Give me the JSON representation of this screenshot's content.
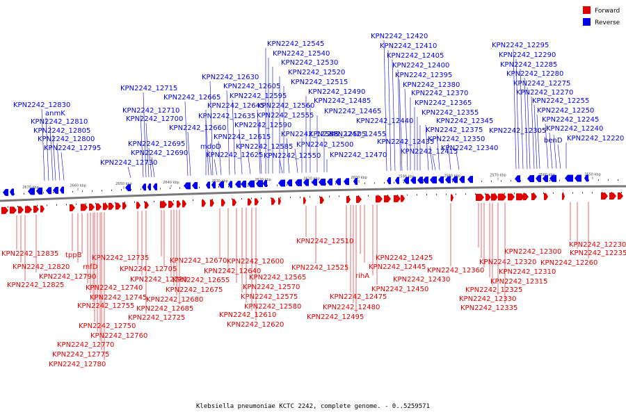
{
  "caption": "Klebsiella pneumoniae KCTC 2242, complete genome. - 0..5259571",
  "legend": [
    {
      "label": "Forward",
      "color": "#e00000"
    },
    {
      "label": "Reverse",
      "color": "#0000ee"
    }
  ],
  "colors": {
    "forward": "#e00000",
    "reverse": "#0000ee",
    "backbone": "#777777"
  },
  "ticks": [
    "2670 kbp",
    "2660 kbp",
    "2650 kbp",
    "2640 kbp",
    "2630 kbp",
    "2620 kbp",
    "2610 kbp",
    "2600 kbp",
    "2590 kbp",
    "2580 kbp",
    "2570 kbp",
    "2560 kbp",
    "2550 kbp"
  ],
  "reverse_labels": [
    "KPN2242_12830",
    "anmK",
    "KPN2242_12810",
    "KPN2242_12805",
    "KPN2242_12800",
    "KPN2242_12795",
    "KPN2242_12730",
    "KPN2242_12715",
    "KPN2242_12710",
    "KPN2242_12700",
    "KPN2242_12695",
    "KPN2242_12690",
    "KPN2242_12665",
    "KPN2242_12660",
    "KPN2242_12630",
    "KPN2242_12645",
    "KPN2242_12635",
    "mdoD",
    "KPN2242_12625",
    "KPN2242_12615",
    "KPN2242_12605",
    "KPN2242_12595",
    "KPN2242_12590",
    "KPN2242_12585",
    "KPN2242_12545",
    "KPN2242_12540",
    "KPN2242_12530",
    "KPN2242_12520",
    "KPN2242_12515",
    "KPN2242_12560",
    "KPN2242_12555",
    "KPN2242_12550",
    "KPN2242_12535",
    "KPN2242_12500",
    "KPN2242_12505",
    "KPN2242_12490",
    "KPN2242_12485",
    "KPN2242_12465",
    "KPN2242_12455",
    "KPN2242_12470",
    "KPN2242_12420",
    "KPN2242_12410",
    "KPN2242_12405",
    "KPN2242_12400",
    "KPN2242_12395",
    "KPN2242_12380",
    "KPN2242_12370",
    "KPN2242_12365",
    "KPN2242_12355",
    "KPN2242_12345",
    "KPN2242_12440",
    "KPN2242_12435",
    "KPN2242_12415",
    "KPN2242_12375",
    "KPN2242_12350",
    "KPN2242_12340",
    "KPN2242_12295",
    "KPN2242_12290",
    "KPN2242_12285",
    "KPN2242_12280",
    "KPN2242_12275",
    "KPN2242_12270",
    "KPN2242_12255",
    "KPN2242_12250",
    "KPN2242_12245",
    "KPN2242_12240",
    "KPN2242_12305",
    "benD",
    "KPN2242_12220"
  ],
  "forward_labels": [
    "KPN2242_12835",
    "KPN2242_12820",
    "KPN2242_12825",
    "KPN2242_12790",
    "tppB",
    "rnfD",
    "KPN2242_12735",
    "KPN2242_12740",
    "KPN2242_12745",
    "KPN2242_12755",
    "KPN2242_12750",
    "KPN2242_12760",
    "KPN2242_12770",
    "KPN2242_12775",
    "KPN2242_12780",
    "KPN2242_12705",
    "KPN2242_12720",
    "KPN2242_12725",
    "KPN2242_12670",
    "KPN2242_12640",
    "KPN2242_12655",
    "KPN2242_12675",
    "KPN2242_12680",
    "KPN2242_12685",
    "KPN2242_12600",
    "KPN2242_12565",
    "KPN2242_12570",
    "KPN2242_12575",
    "KPN2242_12580",
    "KPN2242_12610",
    "KPN2242_12620",
    "KPN2242_12510",
    "KPN2242_12525",
    "rihA",
    "KPN2242_12475",
    "KPN2242_12480",
    "KPN2242_12495",
    "KPN2242_12425",
    "KPN2242_12445",
    "KPN2242_12430",
    "KPN2242_12450",
    "KPN2242_12360",
    "KPN2242_12300",
    "KPN2242_12320",
    "KPN2242_12310",
    "KPN2242_12315",
    "KPN2242_12325",
    "KPN2242_12330",
    "KPN2242_12335",
    "KPN2242_12230",
    "KPN2242_12235",
    "KPN2242_12260"
  ]
}
